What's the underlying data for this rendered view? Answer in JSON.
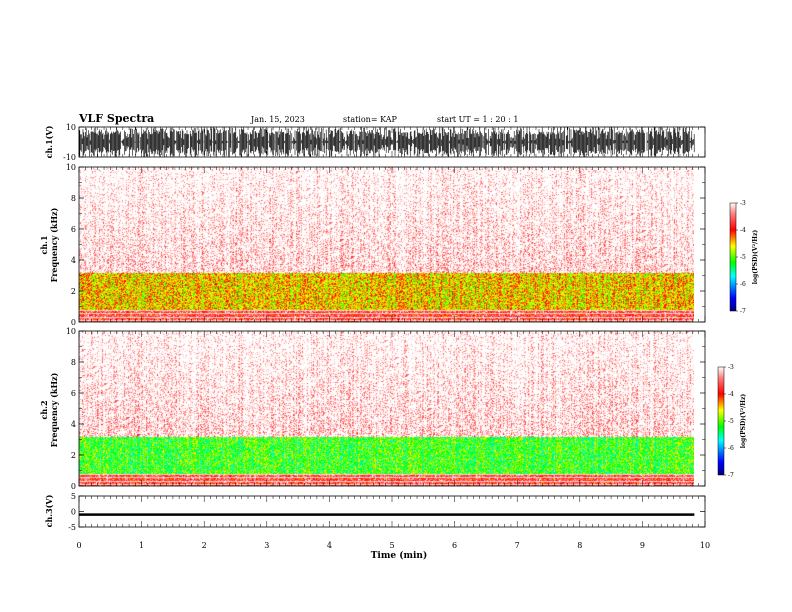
{
  "header": {
    "title": "VLF Spectra",
    "date": "Jan. 15, 2023",
    "station": "station= KAP",
    "start_ut": "start  UT =   1 : 20 : 1"
  },
  "chart_data": [
    {
      "type": "line",
      "panel": "waveform-ch1",
      "ylabel": "ch.1(V)",
      "ylim": [
        -10,
        10
      ],
      "yticks": [
        "10",
        "-10"
      ],
      "xlim": [
        0,
        10
      ],
      "description_values": "dense waveform saturating near ±10 V",
      "color": "#000000"
    },
    {
      "type": "heatmap",
      "panel": "spectrogram-ch1",
      "ylabel": "ch.1\nFrequency  (kHz)",
      "ylim": [
        0,
        10
      ],
      "yticks": [
        "0",
        "2",
        "4",
        "6",
        "8",
        "10"
      ],
      "xlim": [
        0,
        10
      ],
      "x_end": 9.83,
      "band_profile_khz": [
        {
          "from": 0,
          "to": 0.8,
          "level": -3.8
        },
        {
          "from": 0.8,
          "to": 3.2,
          "level": -4.6
        },
        {
          "from": 3.2,
          "to": 10,
          "level": -3.4
        }
      ],
      "colorbar": {
        "label": "log(PSD)(V²/Hz)",
        "ticks": [
          "-3",
          "-4",
          "-5",
          "-6",
          "-7"
        ],
        "range": [
          -7,
          -3
        ]
      }
    },
    {
      "type": "heatmap",
      "panel": "spectrogram-ch2",
      "ylabel": "ch.2\nFrequency  (kHz)",
      "ylim": [
        0,
        10
      ],
      "yticks": [
        "0",
        "2",
        "4",
        "6",
        "8",
        "10"
      ],
      "xlim": [
        0,
        10
      ],
      "x_end": 9.83,
      "band_profile_khz": [
        {
          "from": 0,
          "to": 0.8,
          "level": -3.8
        },
        {
          "from": 0.8,
          "to": 3.2,
          "level": -5.2
        },
        {
          "from": 3.2,
          "to": 10,
          "level": -3.4
        }
      ],
      "colorbar": {
        "label": "log(PSD)(V²/Hz)",
        "ticks": [
          "-3",
          "-4",
          "-5",
          "-6",
          "-7"
        ],
        "range": [
          -7,
          -3
        ]
      }
    },
    {
      "type": "line",
      "panel": "waveform-ch3",
      "ylabel": "ch.3(V)",
      "ylim": [
        -5,
        5
      ],
      "yticks": [
        "5",
        "0",
        "-5"
      ],
      "xlim": [
        0,
        10
      ],
      "description_values": "near-constant thick trace around -1 V",
      "color": "#000000"
    }
  ],
  "xaxis": {
    "label": "Time  (min)",
    "ticks": [
      "0",
      "1",
      "2",
      "3",
      "4",
      "5",
      "6",
      "7",
      "8",
      "9",
      "10"
    ]
  },
  "colors": {
    "psd_scale": [
      "#000080",
      "#0000ff",
      "#00ffff",
      "#00ff00",
      "#ffff00",
      "#ff0000",
      "#ffffff"
    ]
  }
}
